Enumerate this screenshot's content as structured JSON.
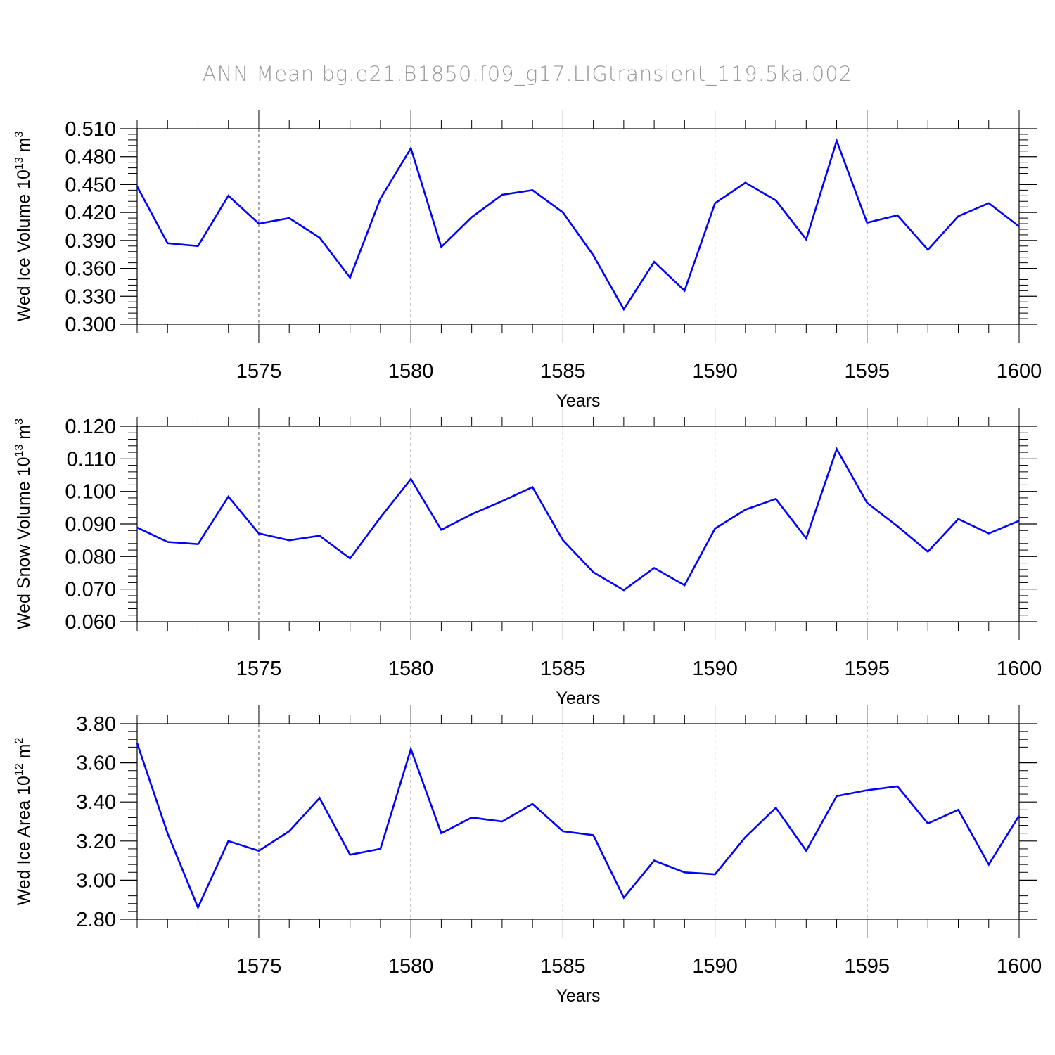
{
  "title": "ANN Mean bg.e21.B1850.f09_g17.LIGtransient_119.5ka.002",
  "colors": {
    "series": "#0000ff",
    "axis": "#000000",
    "grid": "#555555",
    "title": "#9a9a9a"
  },
  "chart_data": [
    {
      "type": "line",
      "ylabel": {
        "main": "Wed Ice Volume 10",
        "exponent": "13",
        "unit": " m",
        "unit_exponent": "3"
      },
      "xlabel": "Years",
      "xlim": [
        1571,
        1600
      ],
      "ylim": [
        0.3,
        0.51
      ],
      "yticks": [
        "0.300",
        "0.330",
        "0.360",
        "0.390",
        "0.420",
        "0.450",
        "0.480",
        "0.510"
      ],
      "xticks": [
        "1575",
        "1580",
        "1585",
        "1590",
        "1595",
        "1600"
      ],
      "grid": "vertical dashed at major x ticks",
      "x": [
        1571,
        1572,
        1573,
        1574,
        1575,
        1576,
        1577,
        1578,
        1579,
        1580,
        1581,
        1582,
        1583,
        1584,
        1585,
        1586,
        1587,
        1588,
        1589,
        1590,
        1591,
        1592,
        1593,
        1594,
        1595,
        1596,
        1597,
        1598,
        1599,
        1600
      ],
      "values": [
        0.448,
        0.387,
        0.384,
        0.438,
        0.408,
        0.414,
        0.393,
        0.35,
        0.435,
        0.489,
        0.383,
        0.415,
        0.439,
        0.444,
        0.42,
        0.374,
        0.316,
        0.367,
        0.336,
        0.43,
        0.452,
        0.433,
        0.391,
        0.497,
        0.409,
        0.417,
        0.38,
        0.416,
        0.43,
        0.405
      ]
    },
    {
      "type": "line",
      "ylabel": {
        "main": "Wed Snow Volume 10",
        "exponent": "13",
        "unit": " m",
        "unit_exponent": "3"
      },
      "xlabel": "Years",
      "xlim": [
        1571,
        1600
      ],
      "ylim": [
        0.06,
        0.12
      ],
      "yticks": [
        "0.060",
        "0.070",
        "0.080",
        "0.090",
        "0.100",
        "0.110",
        "0.120"
      ],
      "xticks": [
        "1575",
        "1580",
        "1585",
        "1590",
        "1595",
        "1600"
      ],
      "grid": "vertical dashed at major x ticks",
      "x": [
        1571,
        1572,
        1573,
        1574,
        1575,
        1576,
        1577,
        1578,
        1579,
        1580,
        1581,
        1582,
        1583,
        1584,
        1585,
        1586,
        1587,
        1588,
        1589,
        1590,
        1591,
        1592,
        1593,
        1594,
        1595,
        1596,
        1597,
        1598,
        1599,
        1600
      ],
      "values": [
        0.0889,
        0.0845,
        0.0838,
        0.0984,
        0.0871,
        0.085,
        0.0864,
        0.0794,
        0.092,
        0.1038,
        0.0882,
        0.093,
        0.097,
        0.1013,
        0.085,
        0.0752,
        0.0697,
        0.0765,
        0.0712,
        0.0886,
        0.0944,
        0.0977,
        0.0856,
        0.113,
        0.0965,
        0.0893,
        0.0815,
        0.0915,
        0.0871,
        0.091
      ]
    },
    {
      "type": "line",
      "ylabel": {
        "main": "Wed Ice Area 10",
        "exponent": "12",
        "unit": " m",
        "unit_exponent": "2"
      },
      "xlabel": "Years",
      "xlim": [
        1571,
        1600
      ],
      "ylim": [
        2.8,
        3.8
      ],
      "yticks": [
        "2.80",
        "3.00",
        "3.20",
        "3.40",
        "3.60",
        "3.80"
      ],
      "xticks": [
        "1575",
        "1580",
        "1585",
        "1590",
        "1595",
        "1600"
      ],
      "grid": "vertical dashed at major x ticks",
      "x": [
        1571,
        1572,
        1573,
        1574,
        1575,
        1576,
        1577,
        1578,
        1579,
        1580,
        1581,
        1582,
        1583,
        1584,
        1585,
        1586,
        1587,
        1588,
        1589,
        1590,
        1591,
        1592,
        1593,
        1594,
        1595,
        1596,
        1597,
        1598,
        1599,
        1600
      ],
      "values": [
        3.7,
        3.24,
        2.86,
        3.2,
        3.15,
        3.25,
        3.42,
        3.13,
        3.16,
        3.67,
        3.24,
        3.32,
        3.3,
        3.39,
        3.25,
        3.23,
        2.91,
        3.1,
        3.04,
        3.03,
        3.22,
        3.37,
        3.15,
        3.43,
        3.46,
        3.48,
        3.29,
        3.36,
        3.08,
        3.33
      ]
    }
  ]
}
